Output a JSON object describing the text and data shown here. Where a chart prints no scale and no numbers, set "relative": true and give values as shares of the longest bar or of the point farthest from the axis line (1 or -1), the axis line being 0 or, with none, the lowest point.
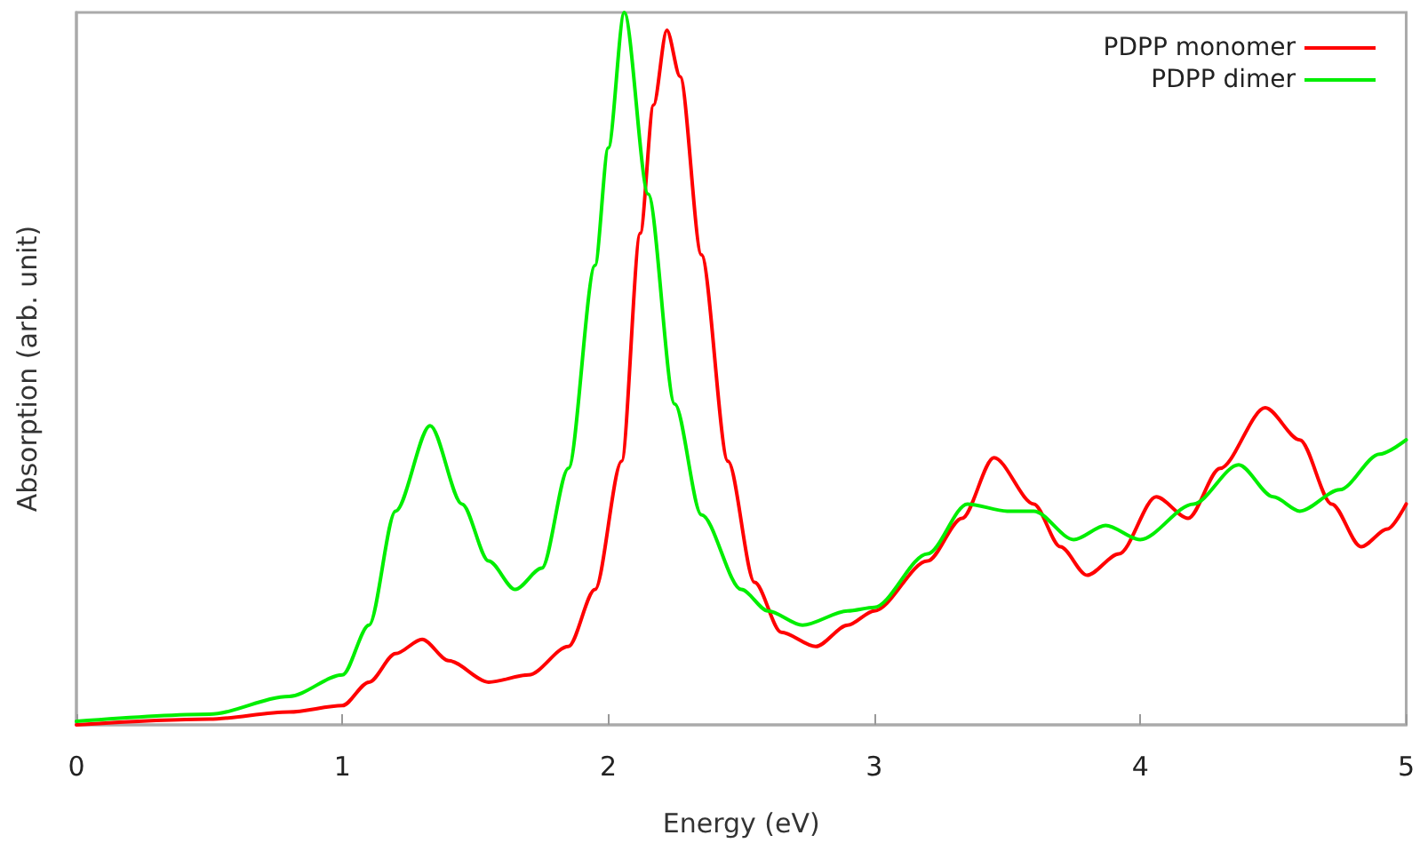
{
  "chart_data": {
    "type": "line",
    "xlabel": "Energy (eV)",
    "ylabel": "Absorption (arb. unit)",
    "relative": true,
    "xlim": [
      0,
      5
    ],
    "xticks": [
      0,
      1,
      2,
      3,
      4,
      5
    ],
    "grid": false,
    "legend": "top right",
    "marker": "none",
    "line_style": "solid",
    "series": [
      {
        "name": "PDPP monomer",
        "color": "#ff0000",
        "x": [
          0,
          0.5,
          0.8,
          1.0,
          1.1,
          1.2,
          1.3,
          1.4,
          1.55,
          1.7,
          1.85,
          1.95,
          2.05,
          2.12,
          2.17,
          2.22,
          2.27,
          2.35,
          2.45,
          2.55,
          2.65,
          2.78,
          2.9,
          3.0,
          3.2,
          3.33,
          3.45,
          3.6,
          3.7,
          3.8,
          3.92,
          4.06,
          4.18,
          4.3,
          4.47,
          4.6,
          4.72,
          4.83,
          4.93,
          5.0
        ],
        "values": [
          0.0,
          0.008,
          0.018,
          0.027,
          0.06,
          0.1,
          0.12,
          0.09,
          0.06,
          0.07,
          0.11,
          0.19,
          0.37,
          0.69,
          0.87,
          0.975,
          0.91,
          0.66,
          0.37,
          0.2,
          0.13,
          0.11,
          0.14,
          0.16,
          0.23,
          0.29,
          0.375,
          0.31,
          0.25,
          0.21,
          0.24,
          0.32,
          0.29,
          0.36,
          0.445,
          0.4,
          0.31,
          0.25,
          0.275,
          0.31
        ]
      },
      {
        "name": "PDPP dimer",
        "color": "#00ee00",
        "x": [
          0,
          0.5,
          0.8,
          1.0,
          1.1,
          1.2,
          1.33,
          1.45,
          1.55,
          1.65,
          1.75,
          1.85,
          1.95,
          2.0,
          2.06,
          2.15,
          2.25,
          2.35,
          2.5,
          2.6,
          2.73,
          2.9,
          3.0,
          3.2,
          3.35,
          3.5,
          3.6,
          3.75,
          3.87,
          4.0,
          4.2,
          4.37,
          4.5,
          4.6,
          4.75,
          4.9,
          5.0
        ],
        "values": [
          0.005,
          0.015,
          0.04,
          0.07,
          0.14,
          0.3,
          0.42,
          0.31,
          0.23,
          0.19,
          0.22,
          0.36,
          0.645,
          0.81,
          1.0,
          0.745,
          0.45,
          0.295,
          0.19,
          0.16,
          0.14,
          0.16,
          0.165,
          0.24,
          0.31,
          0.3,
          0.3,
          0.26,
          0.28,
          0.26,
          0.31,
          0.365,
          0.32,
          0.3,
          0.33,
          0.38,
          0.4
        ]
      }
    ]
  }
}
